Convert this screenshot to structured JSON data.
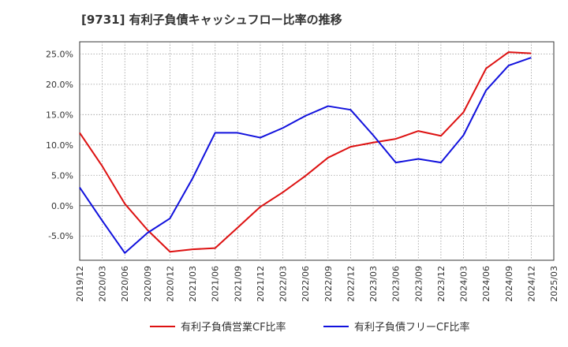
{
  "title": "[9731]  有利子負債キャッシュフロー比率の推移",
  "chart_data": {
    "type": "line",
    "x": [
      "2019/12",
      "2020/03",
      "2020/06",
      "2020/09",
      "2020/12",
      "2021/03",
      "2021/06",
      "2021/09",
      "2021/12",
      "2022/03",
      "2022/06",
      "2022/09",
      "2022/12",
      "2023/03",
      "2023/06",
      "2023/09",
      "2023/12",
      "2024/03",
      "2024/06",
      "2024/09",
      "2024/12",
      "2025/03"
    ],
    "xlim": [
      "2019/12",
      "2025/03"
    ],
    "ylim": [
      -9,
      27
    ],
    "yticks": [
      -5,
      0,
      5,
      10,
      15,
      20,
      25
    ],
    "ytick_labels": [
      "-5.0%",
      "0.0%",
      "5.0%",
      "10.0%",
      "15.0%",
      "20.0%",
      "25.0%"
    ],
    "grid": true,
    "legend_position": "bottom",
    "series": [
      {
        "name": "有利子負債営業CF比率",
        "color": "#dd1111",
        "values": [
          12.0,
          6.5,
          0.3,
          -4.0,
          -7.6,
          -7.2,
          -7.0,
          -3.6,
          -0.2,
          2.2,
          4.9,
          7.9,
          9.7,
          10.4,
          11.0,
          12.3,
          11.5,
          15.4,
          22.6,
          25.3,
          25.1,
          null
        ]
      },
      {
        "name": "有利子負債フリーCF比率",
        "color": "#1111dd",
        "values": [
          3.0,
          -2.5,
          -7.8,
          -4.5,
          -2.1,
          4.5,
          12.0,
          12.0,
          11.2,
          12.8,
          14.8,
          16.4,
          15.8,
          11.6,
          7.1,
          7.7,
          7.1,
          11.6,
          19.0,
          23.1,
          24.4,
          null
        ]
      }
    ]
  }
}
